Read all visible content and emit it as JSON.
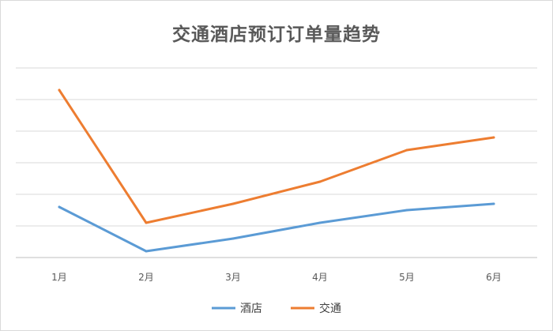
{
  "chart_data": {
    "type": "line",
    "title": "交通酒店预订订单量趋势",
    "categories": [
      "1月",
      "2月",
      "3月",
      "4月",
      "5月",
      "6月"
    ],
    "series": [
      {
        "name": "酒店",
        "color": "#5b9bd5",
        "values": [
          1.6,
          0.2,
          0.6,
          1.1,
          1.5,
          1.7
        ]
      },
      {
        "name": "交通",
        "color": "#ed7d31",
        "values": [
          5.3,
          1.1,
          1.7,
          2.4,
          3.4,
          3.8
        ]
      }
    ],
    "ylim": [
      0,
      6
    ],
    "grid": true,
    "legend": "bottom"
  }
}
